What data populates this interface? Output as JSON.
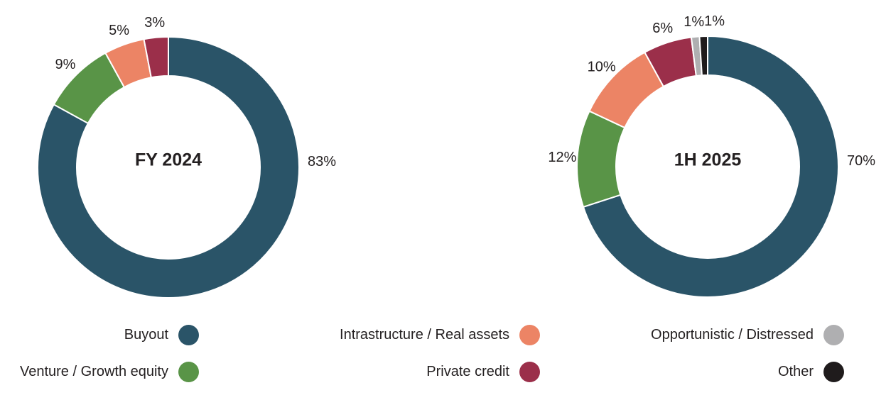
{
  "page": {
    "background": "#ffffff",
    "text_color": "#231F20"
  },
  "chart_data": [
    {
      "type": "pie",
      "donut": true,
      "title": "FY 2024",
      "center_label": "FY 2024",
      "legend_position": "bottom",
      "start_angle_deg": 0,
      "direction": "clockwise",
      "categories": [
        "Buyout",
        "Venture / Growth equity",
        "Intrastructure / Real assets",
        "Private credit"
      ],
      "values": [
        83,
        9,
        5,
        3
      ],
      "segments": [
        {
          "category": "Buyout",
          "value": 83,
          "label": "83%"
        },
        {
          "category": "Venture / Growth equity",
          "value": 9,
          "label": "9%"
        },
        {
          "category": "Intrastructure / Real assets",
          "value": 5,
          "label": "5%"
        },
        {
          "category": "Private credit",
          "value": 3,
          "label": "3%"
        }
      ]
    },
    {
      "type": "pie",
      "donut": true,
      "title": "1H 2025",
      "center_label": "1H 2025",
      "legend_position": "bottom",
      "start_angle_deg": 0,
      "direction": "clockwise",
      "categories": [
        "Buyout",
        "Venture / Growth equity",
        "Intrastructure / Real assets",
        "Private credit",
        "Opportunistic / Distressed",
        "Other"
      ],
      "values": [
        70,
        12,
        10,
        6,
        1,
        1
      ],
      "segments": [
        {
          "category": "Buyout",
          "value": 70,
          "label": "70%"
        },
        {
          "category": "Venture / Growth equity",
          "value": 12,
          "label": "12%"
        },
        {
          "category": "Intrastructure / Real assets",
          "value": 10,
          "label": "10%"
        },
        {
          "category": "Private credit",
          "value": 6,
          "label": "6%"
        },
        {
          "category": "Opportunistic / Distressed",
          "value": 1,
          "label": "1%"
        },
        {
          "category": "Other",
          "value": 1,
          "label": "1%",
          "label_dx": 16
        }
      ]
    }
  ],
  "legend": {
    "items": [
      {
        "label": "Buyout",
        "color": "#2A5468"
      },
      {
        "label": "Venture / Growth equity",
        "color": "#599447"
      },
      {
        "label": "Intrastructure / Real assets",
        "color": "#EC8465"
      },
      {
        "label": "Private credit",
        "color": "#9B2F4A"
      },
      {
        "label": "Opportunistic / Distressed",
        "color": "#AFAFB1"
      },
      {
        "label": "Other",
        "color": "#1F1B1C"
      }
    ]
  }
}
